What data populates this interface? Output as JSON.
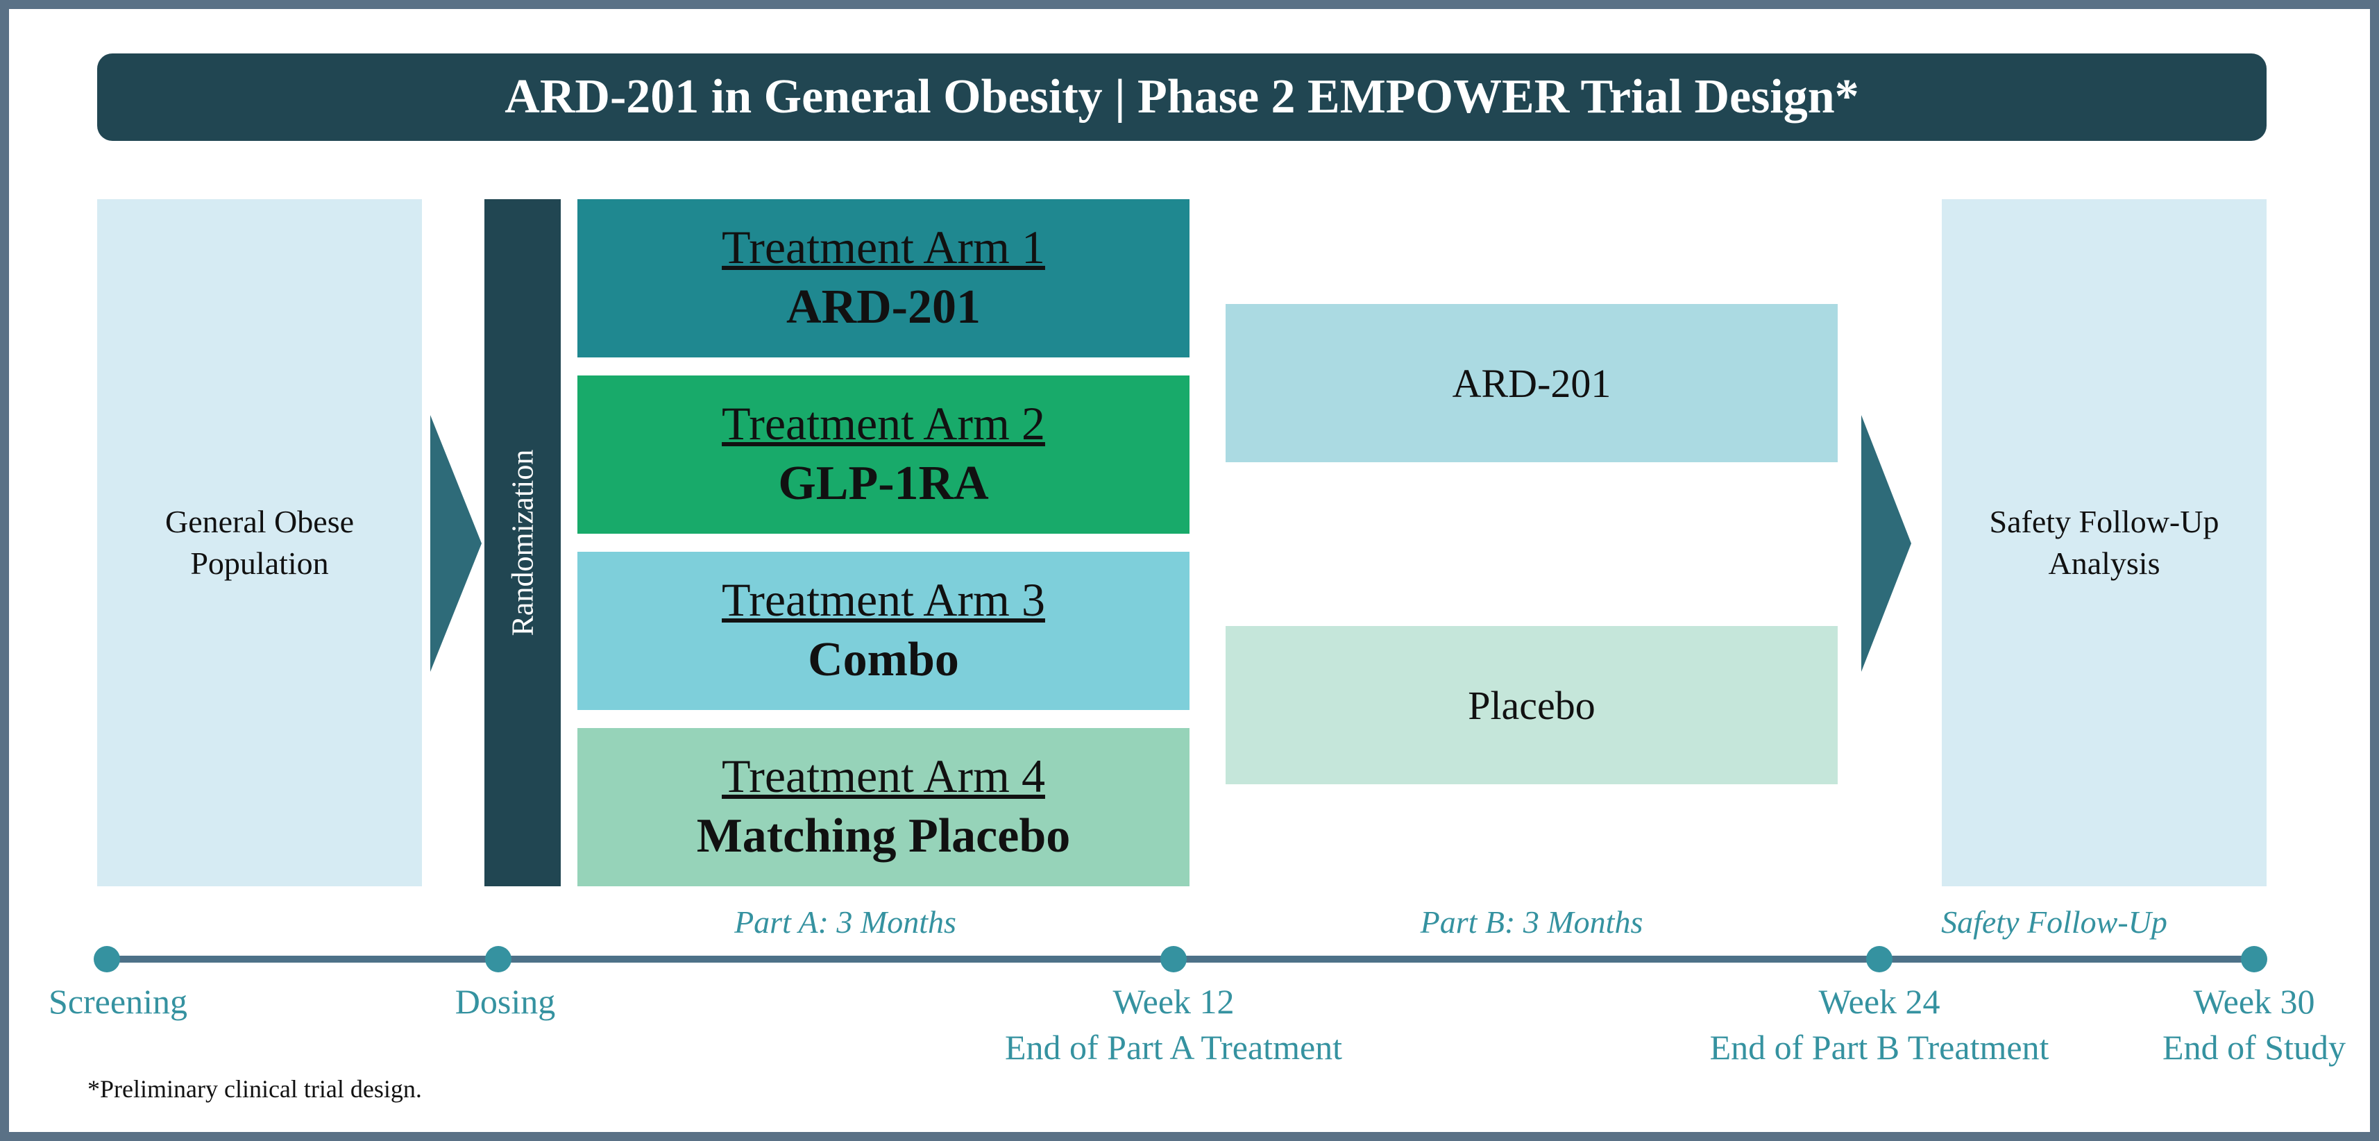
{
  "title": "ARD-201 in General Obesity | Phase 2 EMPOWER Trial Design*",
  "population": {
    "line1": "General Obese",
    "line2": "Population"
  },
  "randomization": "Randomization",
  "arms": [
    {
      "title": "Treatment Arm 1",
      "drug": "ARD-201",
      "color": "#1f8890"
    },
    {
      "title": "Treatment Arm 2",
      "drug": "GLP-1RA",
      "color": "#18aa6a"
    },
    {
      "title": "Treatment Arm 3",
      "drug": "Combo",
      "color": "#7ecfda"
    },
    {
      "title": "Treatment Arm 4",
      "drug": "Matching Placebo",
      "color": "#96d3b9"
    }
  ],
  "part_b": {
    "ard": "ARD-201",
    "placebo": "Placebo"
  },
  "followup": {
    "line1": "Safety Follow-Up",
    "line2": "Analysis"
  },
  "phases": {
    "part_a": "Part A: 3 Months",
    "part_b": "Part B: 3 Months",
    "safety": "Safety Follow-Up"
  },
  "milestones": [
    {
      "line1": "Screening",
      "line2": ""
    },
    {
      "line1": "Dosing",
      "line2": ""
    },
    {
      "line1": "Week 12",
      "line2": "End of Part A Treatment"
    },
    {
      "line1": "Week 24",
      "line2": "End of Part B Treatment"
    },
    {
      "line1": "Week 30",
      "line2": "End of Study"
    }
  ],
  "footnote": "*Preliminary clinical trial design.",
  "colors": {
    "dark": "#214652",
    "panel": "#d6ebf3",
    "arrow": "#2e6b79",
    "timeline_text": "#3592a0",
    "part_b_ard": "#abdae2",
    "part_b_placebo": "#c5e6da"
  }
}
